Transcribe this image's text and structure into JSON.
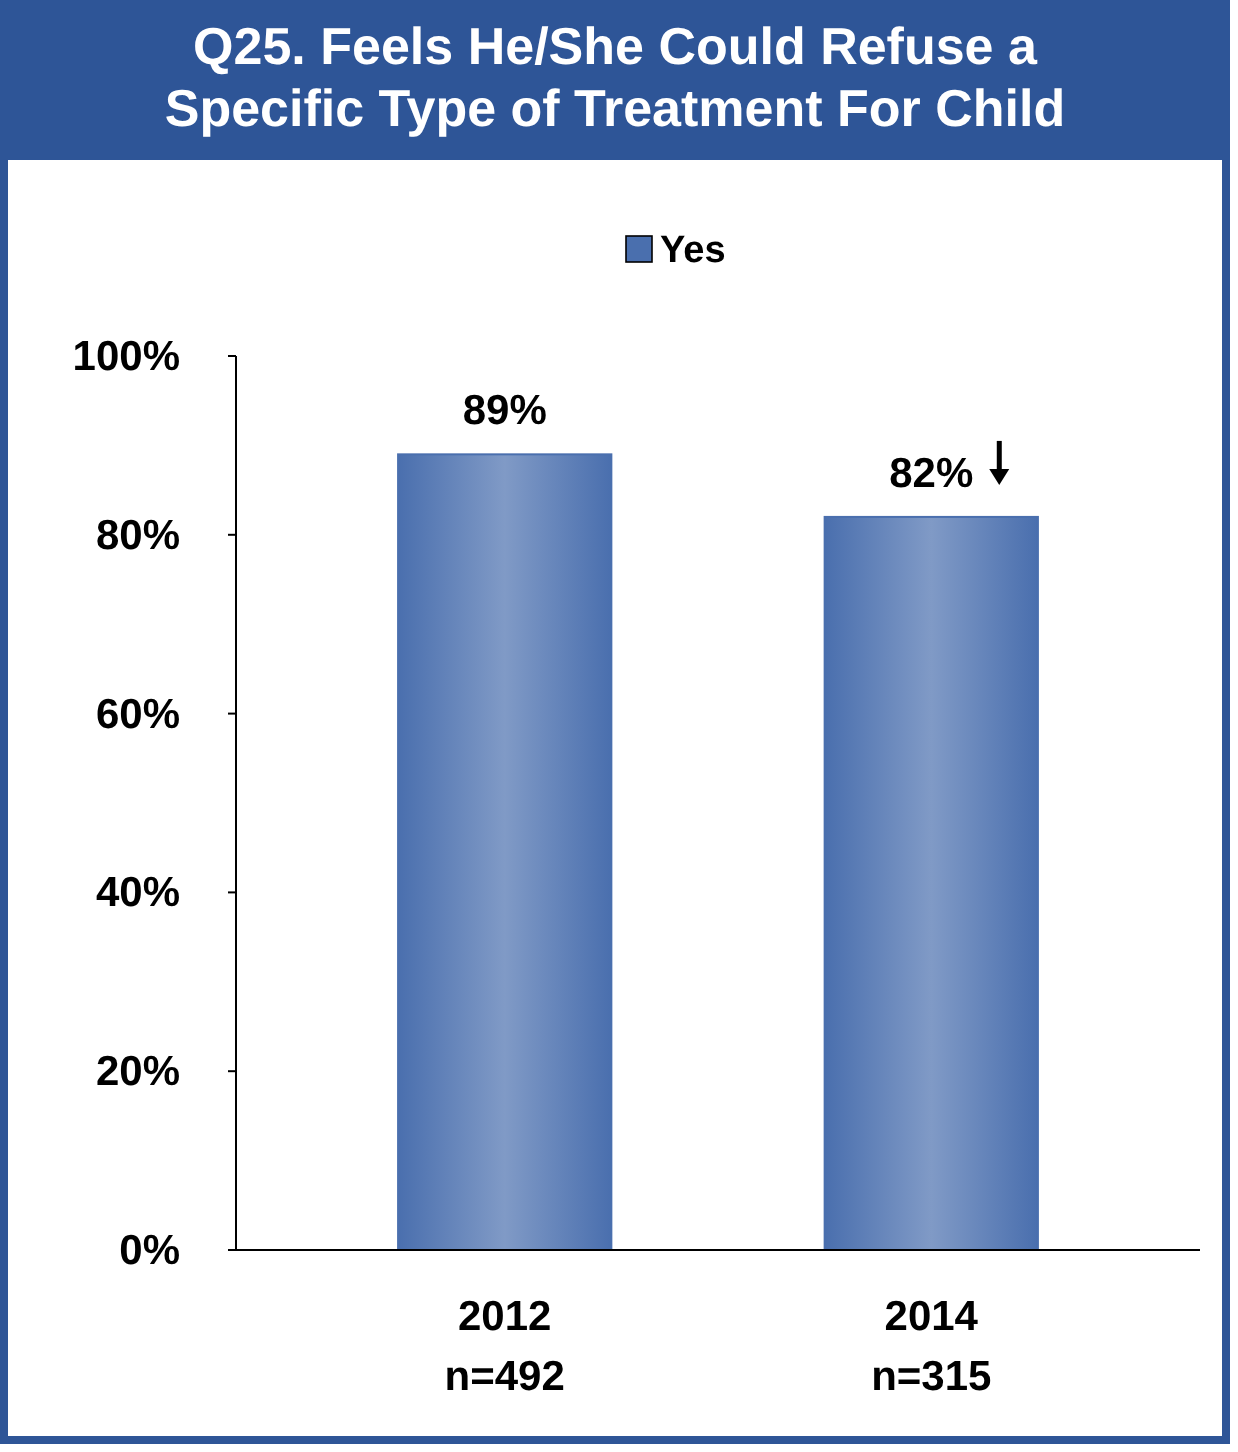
{
  "chart_data": {
    "type": "bar",
    "title": "Q25. Feels He/She Could Refuse a Specific Type of Treatment For Child",
    "categories": [
      "2012\nn=492",
      "2014\nn=315"
    ],
    "series": [
      {
        "name": "Yes",
        "color": "#4a6fae",
        "values": [
          89,
          82
        ]
      }
    ],
    "value_labels": [
      "89%",
      "82%"
    ],
    "ylim": [
      0,
      100
    ],
    "yticks": [
      {
        "value": 0,
        "label": "0%"
      },
      {
        "value": 20,
        "label": "20%"
      },
      {
        "value": 40,
        "label": "40%"
      },
      {
        "value": 60,
        "label": "60%"
      },
      {
        "value": 80,
        "label": "80%"
      },
      {
        "value": 100,
        "label": "100%"
      }
    ],
    "legend": "top",
    "grid": false
  }
}
